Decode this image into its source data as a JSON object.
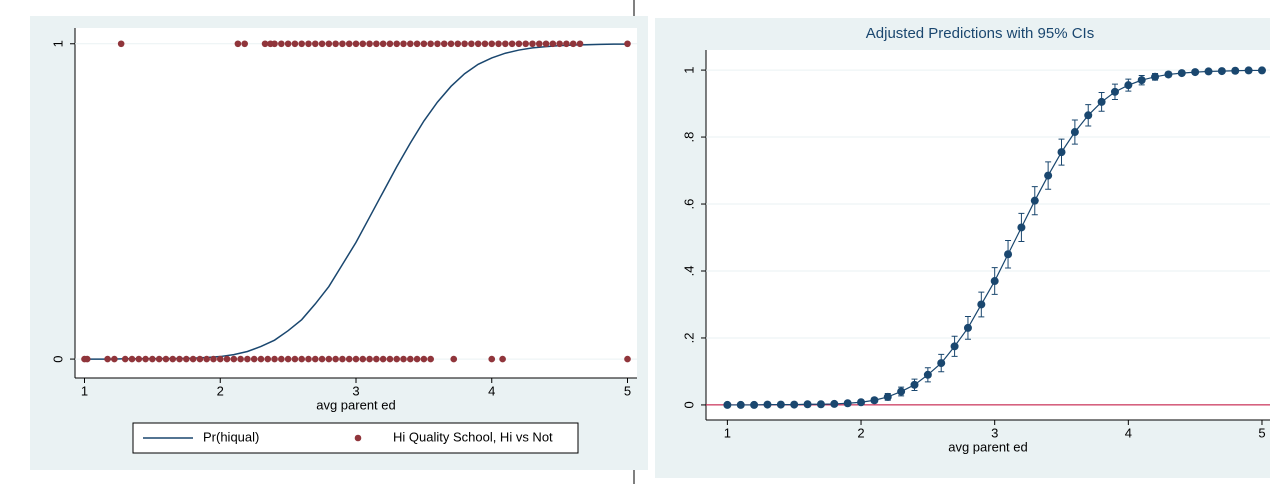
{
  "chart_data": [
    {
      "type": "scatter",
      "xlabel": "avg parent ed",
      "xlim": [
        0.93,
        5.07
      ],
      "xticks": [
        1,
        2,
        3,
        4,
        5
      ],
      "ylim": [
        -0.06,
        1.05
      ],
      "yticks": [
        0,
        1
      ],
      "legend": "bottom",
      "series": [
        {
          "name": "Pr(hiqual)",
          "type": "line",
          "color": "#1a476f",
          "x": [
            1.0,
            1.1,
            1.2,
            1.3,
            1.4,
            1.5,
            1.6,
            1.7,
            1.8,
            1.9,
            2.0,
            2.1,
            2.2,
            2.3,
            2.4,
            2.5,
            2.6,
            2.7,
            2.8,
            2.9,
            3.0,
            3.1,
            3.2,
            3.3,
            3.4,
            3.5,
            3.6,
            3.7,
            3.8,
            3.9,
            4.0,
            4.1,
            4.2,
            4.3,
            4.4,
            4.5,
            4.6,
            4.7,
            4.8,
            4.9,
            5.0
          ],
          "values": [
            0,
            0,
            0,
            0.001,
            0.001,
            0.001,
            0.002,
            0.002,
            0.003,
            0.005,
            0.008,
            0.014,
            0.024,
            0.04,
            0.06,
            0.09,
            0.125,
            0.175,
            0.23,
            0.3,
            0.37,
            0.45,
            0.53,
            0.61,
            0.685,
            0.755,
            0.815,
            0.865,
            0.905,
            0.935,
            0.955,
            0.97,
            0.98,
            0.987,
            0.991,
            0.994,
            0.996,
            0.997,
            0.998,
            0.999,
            0.999
          ]
        },
        {
          "name": "Hi Quality School, Hi vs Not",
          "type": "scatter",
          "color": "#90353b",
          "x": [
            1.27,
            2.13,
            2.18,
            2.33,
            2.37,
            2.4,
            2.45,
            2.5,
            2.55,
            2.6,
            2.65,
            2.7,
            2.75,
            2.8,
            2.85,
            2.9,
            2.95,
            3.0,
            3.05,
            3.1,
            3.15,
            3.2,
            3.25,
            3.3,
            3.35,
            3.4,
            3.45,
            3.5,
            3.55,
            3.6,
            3.65,
            3.7,
            3.75,
            3.8,
            3.85,
            3.9,
            3.95,
            4.0,
            4.05,
            4.1,
            4.15,
            4.2,
            4.25,
            4.3,
            4.35,
            4.4,
            4.45,
            4.5,
            4.55,
            4.6,
            4.65,
            5.0,
            1.0,
            1.02,
            1.17,
            1.22,
            1.3,
            1.35,
            1.4,
            1.45,
            1.5,
            1.55,
            1.6,
            1.65,
            1.7,
            1.75,
            1.8,
            1.85,
            1.9,
            1.95,
            2.0,
            2.05,
            2.1,
            2.15,
            2.2,
            2.25,
            2.3,
            2.35,
            2.4,
            2.45,
            2.5,
            2.55,
            2.6,
            2.65,
            2.7,
            2.75,
            2.8,
            2.85,
            2.9,
            2.95,
            3.0,
            3.05,
            3.1,
            3.15,
            3.2,
            3.25,
            3.3,
            3.35,
            3.4,
            3.45,
            3.5,
            3.55,
            3.72,
            4.0,
            4.08,
            5.0
          ],
          "values": [
            1,
            1,
            1,
            1,
            1,
            1,
            1,
            1,
            1,
            1,
            1,
            1,
            1,
            1,
            1,
            1,
            1,
            1,
            1,
            1,
            1,
            1,
            1,
            1,
            1,
            1,
            1,
            1,
            1,
            1,
            1,
            1,
            1,
            1,
            1,
            1,
            1,
            1,
            1,
            1,
            1,
            1,
            1,
            1,
            1,
            1,
            1,
            1,
            1,
            1,
            1,
            1,
            0,
            0,
            0,
            0,
            0,
            0,
            0,
            0,
            0,
            0,
            0,
            0,
            0,
            0,
            0,
            0,
            0,
            0,
            0,
            0,
            0,
            0,
            0,
            0,
            0,
            0,
            0,
            0,
            0,
            0,
            0,
            0,
            0,
            0,
            0,
            0,
            0,
            0,
            0,
            0,
            0,
            0,
            0,
            0,
            0,
            0,
            0,
            0,
            0,
            0,
            0,
            0,
            0,
            0
          ]
        }
      ]
    },
    {
      "type": "errorbar",
      "title": "Adjusted Predictions with 95% CIs",
      "xlabel": "avg parent ed",
      "xlim": [
        0.84,
        5.06
      ],
      "xticks": [
        1,
        2,
        3,
        4,
        5
      ],
      "ylim": [
        -0.045,
        1.06
      ],
      "yticks": [
        0,
        {
          "value": 0.2,
          "label": ".2"
        },
        {
          "value": 0.4,
          "label": ".4"
        },
        {
          "value": 0.6,
          "label": ".6"
        },
        {
          "value": 0.8,
          "label": ".8"
        },
        1
      ],
      "color": "#1a476f",
      "hline": 0,
      "hline_color": "#c10534",
      "x": [
        1.0,
        1.1,
        1.2,
        1.3,
        1.4,
        1.5,
        1.6,
        1.7,
        1.8,
        1.9,
        2.0,
        2.1,
        2.2,
        2.3,
        2.4,
        2.5,
        2.6,
        2.7,
        2.8,
        2.9,
        3.0,
        3.1,
        3.2,
        3.3,
        3.4,
        3.5,
        3.6,
        3.7,
        3.8,
        3.9,
        4.0,
        4.1,
        4.2,
        4.3,
        4.4,
        4.5,
        4.6,
        4.7,
        4.8,
        4.9,
        5.0
      ],
      "values": [
        0,
        0,
        0,
        0.001,
        0.001,
        0.001,
        0.002,
        0.002,
        0.003,
        0.005,
        0.008,
        0.014,
        0.024,
        0.04,
        0.06,
        0.09,
        0.125,
        0.175,
        0.23,
        0.3,
        0.37,
        0.45,
        0.53,
        0.61,
        0.685,
        0.755,
        0.815,
        0.865,
        0.905,
        0.935,
        0.955,
        0.97,
        0.98,
        0.987,
        0.991,
        0.994,
        0.996,
        0.997,
        0.998,
        0.999,
        0.999
      ],
      "errors": [
        0,
        0,
        0,
        0,
        0,
        0.001,
        0.001,
        0.002,
        0.003,
        0.004,
        0.005,
        0.007,
        0.01,
        0.013,
        0.017,
        0.021,
        0.026,
        0.03,
        0.034,
        0.037,
        0.04,
        0.041,
        0.042,
        0.042,
        0.041,
        0.039,
        0.036,
        0.032,
        0.028,
        0.023,
        0.018,
        0.014,
        0.01,
        0.007,
        0.005,
        0.004,
        0.003,
        0.002,
        0.001,
        0.001,
        0.001
      ]
    }
  ]
}
